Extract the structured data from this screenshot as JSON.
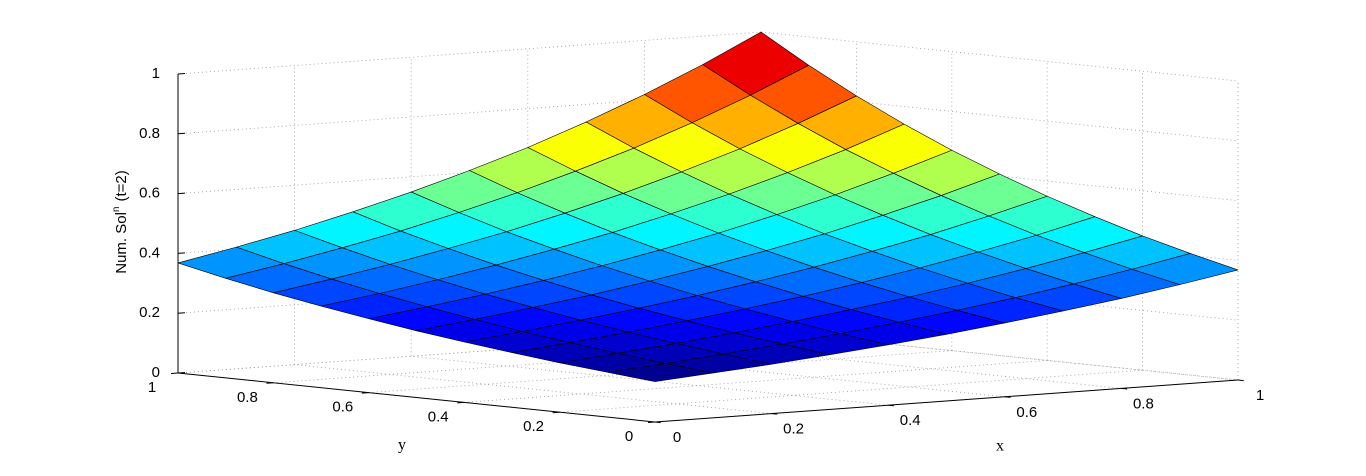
{
  "chart_data": {
    "type": "surface",
    "xlabel": "x",
    "ylabel": "y",
    "zlabel": "Num. Sol",
    "zlabel_sup": "n",
    "zlabel_suffix": "(t=2)",
    "x": [
      0,
      0.1,
      0.2,
      0.3,
      0.4,
      0.5,
      0.6,
      0.7,
      0.8,
      0.9,
      1
    ],
    "y": [
      0,
      0.1,
      0.2,
      0.3,
      0.4,
      0.5,
      0.6,
      0.7,
      0.8,
      0.9,
      1
    ],
    "z": [
      [
        0.135,
        0.15,
        0.165,
        0.183,
        0.202,
        0.223,
        0.247,
        0.273,
        0.301,
        0.333,
        0.368
      ],
      [
        0.15,
        0.165,
        0.183,
        0.202,
        0.223,
        0.247,
        0.273,
        0.301,
        0.333,
        0.368,
        0.407
      ],
      [
        0.165,
        0.183,
        0.202,
        0.223,
        0.247,
        0.273,
        0.301,
        0.333,
        0.368,
        0.407,
        0.449
      ],
      [
        0.183,
        0.202,
        0.223,
        0.247,
        0.273,
        0.301,
        0.333,
        0.368,
        0.407,
        0.449,
        0.497
      ],
      [
        0.202,
        0.223,
        0.247,
        0.273,
        0.301,
        0.333,
        0.368,
        0.407,
        0.449,
        0.497,
        0.549
      ],
      [
        0.223,
        0.247,
        0.273,
        0.301,
        0.333,
        0.368,
        0.407,
        0.449,
        0.497,
        0.549,
        0.607
      ],
      [
        0.247,
        0.273,
        0.301,
        0.333,
        0.368,
        0.407,
        0.449,
        0.497,
        0.549,
        0.607,
        0.67
      ],
      [
        0.273,
        0.301,
        0.333,
        0.368,
        0.407,
        0.449,
        0.497,
        0.549,
        0.607,
        0.67,
        0.741
      ],
      [
        0.301,
        0.333,
        0.368,
        0.407,
        0.449,
        0.497,
        0.549,
        0.607,
        0.67,
        0.741,
        0.819
      ],
      [
        0.333,
        0.368,
        0.407,
        0.449,
        0.497,
        0.549,
        0.607,
        0.67,
        0.741,
        0.819,
        0.905
      ],
      [
        0.368,
        0.407,
        0.449,
        0.497,
        0.549,
        0.607,
        0.67,
        0.741,
        0.819,
        0.905,
        1.0
      ]
    ],
    "xlim": [
      0,
      1
    ],
    "ylim": [
      0,
      1
    ],
    "zlim": [
      0,
      1
    ],
    "xticks": [
      0,
      0.2,
      0.4,
      0.6,
      0.8,
      1
    ],
    "yticks": [
      0,
      0.2,
      0.4,
      0.6,
      0.8,
      1
    ],
    "zticks": [
      0,
      0.2,
      0.4,
      0.6,
      0.8,
      1
    ],
    "grid": true,
    "colormap": "jet",
    "edge_color": "#000000"
  }
}
